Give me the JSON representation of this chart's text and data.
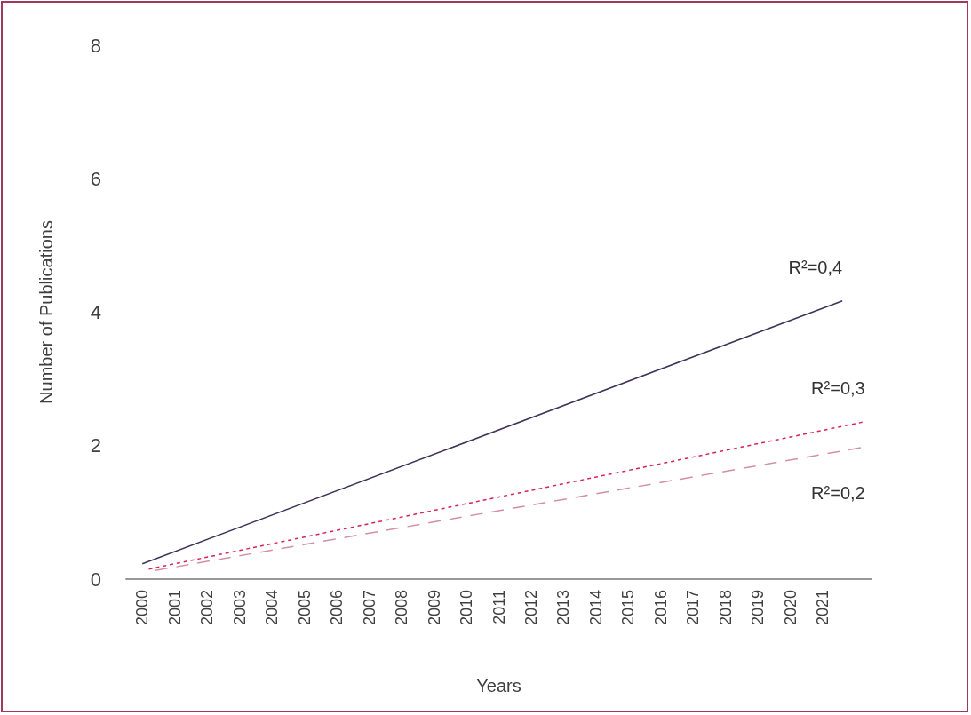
{
  "chart_data": {
    "type": "line",
    "xlabel": "Years",
    "ylabel": "Number of Publications",
    "xlim": [
      1999.5,
      2022.5
    ],
    "xticks": [
      2000,
      2001,
      2002,
      2003,
      2004,
      2005,
      2006,
      2007,
      2008,
      2009,
      2010,
      2011,
      2012,
      2013,
      2014,
      2015,
      2016,
      2017,
      2018,
      2019,
      2020,
      2021
    ],
    "ylim": [
      0,
      8
    ],
    "yticks": [
      0,
      2,
      4,
      6,
      8
    ],
    "grid": false,
    "legend": false,
    "marker": "none",
    "series": [
      {
        "name": "R²=0,4",
        "color": "#3d3358",
        "line_style": "solid",
        "x": [
          2000,
          2021.6
        ],
        "values": [
          0.23,
          4.17
        ]
      },
      {
        "name": "R²=0,3",
        "color": "#d6245a",
        "line_style": "dotted",
        "x": [
          2000.2,
          2022.3
        ],
        "values": [
          0.15,
          2.36
        ]
      },
      {
        "name": "R²=0,2",
        "color": "#d48fa8",
        "line_style": "dashed",
        "x": [
          2000.4,
          2022.3
        ],
        "values": [
          0.13,
          1.98
        ]
      }
    ]
  }
}
